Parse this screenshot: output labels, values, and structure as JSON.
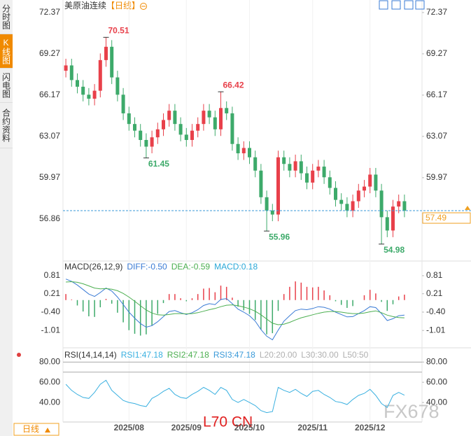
{
  "sidebar_tabs": [
    "分时图",
    "K线图",
    "闪电图",
    "合约资料"
  ],
  "period_button": "日线",
  "watermark": "FX678",
  "overlay_text": "L70 CN",
  "chart_data": [
    {
      "type": "candlestick",
      "title": "美原油连续",
      "period": "【日线】",
      "categories": [
        null,
        null,
        null,
        null,
        null,
        null,
        null,
        null,
        null,
        null,
        null,
        "2025/08",
        null,
        null,
        null,
        null,
        null,
        null,
        null,
        null,
        null,
        "2025/09",
        null,
        null,
        null,
        null,
        null,
        null,
        null,
        null,
        null,
        null,
        "2025/10",
        null,
        null,
        null,
        null,
        null,
        null,
        null,
        null,
        null,
        null,
        "2025/11",
        null,
        null,
        null,
        null,
        null,
        null,
        null,
        null,
        null,
        "2025/12",
        null,
        null,
        null,
        null,
        null,
        null
      ],
      "open": [
        68.0,
        68.4,
        67.3,
        66.8,
        66.2,
        65.9,
        66.5,
        68.8,
        69.8,
        67.5,
        66.2,
        64.8,
        64.0,
        63.5,
        62.8,
        62.3,
        63.0,
        63.6,
        64.3,
        65.0,
        64.0,
        63.2,
        62.8,
        63.5,
        64.0,
        65.0,
        64.5,
        63.6,
        65.2,
        64.8,
        62.5,
        61.8,
        62.2,
        61.5,
        60.5,
        58.5,
        57.5,
        57.2,
        61.5,
        61.0,
        60.5,
        61.2,
        60.3,
        59.6,
        60.5,
        60.8,
        60.0,
        59.2,
        58.3,
        58.0,
        57.5,
        58.2,
        59.0,
        59.3,
        60.2,
        59.0,
        57.0,
        56.0,
        57.8,
        58.2
      ],
      "high": [
        68.9,
        68.9,
        67.8,
        67.3,
        66.7,
        67.0,
        69.3,
        70.51,
        70.3,
        68.0,
        66.7,
        65.3,
        64.5,
        64.0,
        63.3,
        63.5,
        64.1,
        64.8,
        65.5,
        65.5,
        64.5,
        63.7,
        64.0,
        64.5,
        65.5,
        65.5,
        65.0,
        66.42,
        65.7,
        65.3,
        63.0,
        62.7,
        62.7,
        62.0,
        61.0,
        59.0,
        58.0,
        62.0,
        62.0,
        61.5,
        61.7,
        61.7,
        60.8,
        61.0,
        61.3,
        61.3,
        60.5,
        59.7,
        58.8,
        58.5,
        58.7,
        59.5,
        59.8,
        60.7,
        60.7,
        59.5,
        57.5,
        58.3,
        58.7,
        58.7
      ],
      "low": [
        67.5,
        66.8,
        66.3,
        65.7,
        65.4,
        65.4,
        66.0,
        68.3,
        67.0,
        65.7,
        64.3,
        63.5,
        63.0,
        62.3,
        61.45,
        61.8,
        62.5,
        63.1,
        63.8,
        63.5,
        62.7,
        62.3,
        62.3,
        63.0,
        63.5,
        64.0,
        63.1,
        63.1,
        64.3,
        62.0,
        61.3,
        61.3,
        61.0,
        60.0,
        58.0,
        55.96,
        56.7,
        56.7,
        60.5,
        60.0,
        60.0,
        59.8,
        59.1,
        59.1,
        60.0,
        59.5,
        58.7,
        57.8,
        57.5,
        57.0,
        57.0,
        57.7,
        58.5,
        58.8,
        58.5,
        54.98,
        55.5,
        55.5,
        57.3,
        57.0
      ],
      "close": [
        68.4,
        67.3,
        66.8,
        66.2,
        65.9,
        66.5,
        68.8,
        69.8,
        67.5,
        66.2,
        64.8,
        64.0,
        63.5,
        62.8,
        62.3,
        63.0,
        63.6,
        64.3,
        65.0,
        64.0,
        63.2,
        62.8,
        63.5,
        64.0,
        65.0,
        64.5,
        63.6,
        65.2,
        64.8,
        62.5,
        61.8,
        62.2,
        61.5,
        60.5,
        58.5,
        57.5,
        57.2,
        61.5,
        61.0,
        60.5,
        61.2,
        60.3,
        59.6,
        60.5,
        60.8,
        60.0,
        59.2,
        58.3,
        58.0,
        57.5,
        58.2,
        59.0,
        59.3,
        60.2,
        59.0,
        57.0,
        56.0,
        57.8,
        58.2,
        57.49
      ],
      "up_color": "#e8404a",
      "down_color": "#3daa6a",
      "last_color": "#f0a020",
      "ylim": [
        53.76,
        73.05
      ],
      "yticks": [
        72.37,
        69.27,
        66.17,
        63.07,
        59.97,
        56.86
      ]
    },
    {
      "type": "macd",
      "title": "MACD(26,12,9)",
      "series": [
        {
          "name": "DIFF:-0.50",
          "color": "#3a7bd5",
          "values": [
            0.7,
            0.62,
            0.5,
            0.35,
            0.2,
            0.12,
            0.25,
            0.4,
            0.3,
            0.1,
            -0.15,
            -0.4,
            -0.6,
            -0.78,
            -0.9,
            -0.85,
            -0.72,
            -0.55,
            -0.38,
            -0.35,
            -0.42,
            -0.48,
            -0.42,
            -0.32,
            -0.18,
            -0.12,
            -0.15,
            0.02,
            0.05,
            -0.12,
            -0.3,
            -0.4,
            -0.52,
            -0.7,
            -0.98,
            -1.2,
            -1.32,
            -1.0,
            -0.7,
            -0.52,
            -0.35,
            -0.3,
            -0.32,
            -0.28,
            -0.22,
            -0.24,
            -0.3,
            -0.4,
            -0.48,
            -0.56,
            -0.55,
            -0.45,
            -0.35,
            -0.22,
            -0.25,
            -0.45,
            -0.68,
            -0.62,
            -0.52,
            -0.5
          ]
        },
        {
          "name": "DEA:-0.59",
          "color": "#4caf50",
          "values": [
            0.6,
            0.61,
            0.59,
            0.54,
            0.47,
            0.4,
            0.37,
            0.38,
            0.36,
            0.31,
            0.22,
            0.1,
            -0.04,
            -0.19,
            -0.33,
            -0.43,
            -0.49,
            -0.5,
            -0.48,
            -0.45,
            -0.45,
            -0.46,
            -0.45,
            -0.42,
            -0.37,
            -0.32,
            -0.28,
            -0.22,
            -0.17,
            -0.16,
            -0.19,
            -0.23,
            -0.29,
            -0.37,
            -0.49,
            -0.63,
            -0.77,
            -0.82,
            -0.8,
            -0.74,
            -0.66,
            -0.59,
            -0.54,
            -0.49,
            -0.44,
            -0.4,
            -0.38,
            -0.38,
            -0.4,
            -0.43,
            -0.45,
            -0.45,
            -0.43,
            -0.39,
            -0.36,
            -0.42,
            -0.5,
            -0.55,
            -0.58,
            -0.59
          ]
        },
        {
          "name": "MACD:0.18",
          "color": "#2aa8d8",
          "values": [
            0.2,
            0.02,
            -0.18,
            -0.38,
            -0.54,
            -0.56,
            -0.24,
            0.04,
            -0.12,
            -0.42,
            -0.74,
            -1.0,
            -1.12,
            -1.18,
            -1.14,
            -0.84,
            -0.46,
            -0.1,
            0.2,
            0.2,
            0.06,
            -0.04,
            0.06,
            0.2,
            0.38,
            0.4,
            0.26,
            0.48,
            0.44,
            0.08,
            -0.22,
            -0.34,
            -0.46,
            -0.66,
            -0.98,
            -1.14,
            -1.1,
            -0.36,
            0.2,
            0.44,
            0.62,
            0.58,
            0.44,
            0.42,
            0.44,
            0.32,
            0.16,
            -0.04,
            -0.16,
            -0.26,
            -0.2,
            0.0,
            0.16,
            0.34,
            0.22,
            -0.06,
            -0.36,
            -0.14,
            0.12,
            0.18
          ]
        }
      ],
      "up_color": "#e8404a",
      "down_color": "#3daa6a",
      "ylim": [
        -1.54,
        1.25
      ],
      "yticks": [
        0.81,
        0.21,
        {
          "value": -0.4,
          "label": "-0.40"
        },
        -1.01
      ]
    },
    {
      "type": "rsi",
      "title": "RSI(14,14,14)",
      "series": [
        {
          "name": "RSI1:47.18",
          "color": "#3ab0e0",
          "values": [
            58,
            52,
            48,
            45,
            44,
            50,
            58,
            62,
            52,
            47,
            42,
            40,
            39,
            37,
            36,
            44,
            47,
            51,
            54,
            48,
            45,
            44,
            48,
            51,
            55,
            52,
            48,
            55,
            52,
            43,
            40,
            43,
            40,
            37,
            32,
            30,
            31,
            55,
            52,
            50,
            53,
            49,
            46,
            51,
            52,
            48,
            45,
            41,
            40,
            38,
            43,
            47,
            49,
            53,
            47,
            39,
            35,
            47,
            50,
            47.18
          ]
        }
      ],
      "legend_items": [
        {
          "text": "RSI2:47.18",
          "color": "#4caf50"
        },
        {
          "text": "RSI3:47.18",
          "color": "#3a9ad9"
        },
        {
          "text": "L20:20.00",
          "color": "#b0b0b0"
        },
        {
          "text": "L30:30.00",
          "color": "#b0b0b0"
        },
        {
          "text": "L50:50",
          "color": "#b0b0b0"
        }
      ],
      "ref_lines": [
        80,
        70
      ],
      "ylim": [
        20.7,
        92
      ],
      "yticks": [
        {
          "value": 80,
          "label": "80.00"
        },
        {
          "value": 60,
          "label": "60.00"
        },
        {
          "value": 40,
          "label": "40.00"
        }
      ]
    }
  ]
}
